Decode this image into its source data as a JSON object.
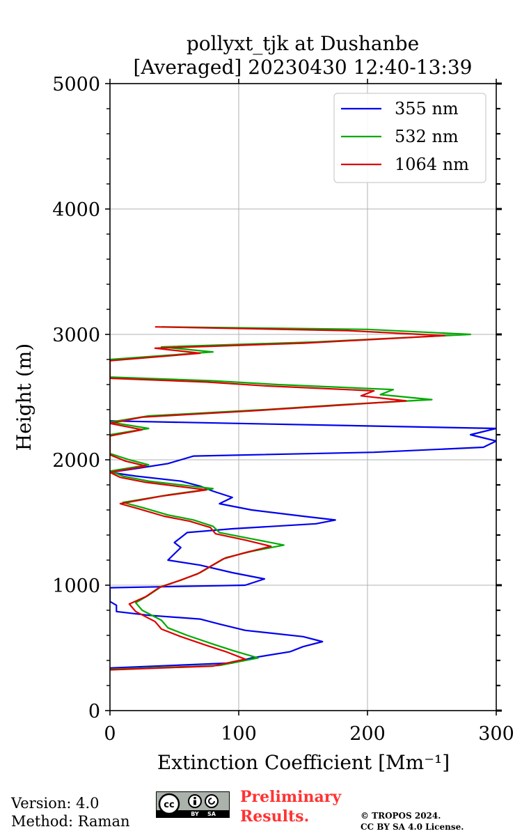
{
  "chart_data": {
    "type": "line",
    "orientation": "vertical-profile",
    "title": [
      "pollyxt_tjk at Dushanbe",
      "[Averaged] 20230430 12:40-13:39"
    ],
    "xlabel": "Extinction Coefficient [Mm⁻¹]",
    "ylabel": "Height (m)",
    "xlim": [
      0,
      300
    ],
    "ylim": [
      0,
      5000
    ],
    "xticks": [
      "0",
      "100",
      "200",
      "300"
    ],
    "yticks": [
      "0",
      "1000",
      "2000",
      "3000",
      "4000",
      "5000"
    ],
    "grid": true,
    "legend_position": "top-right",
    "series": [
      {
        "name": "355 nm",
        "color": "#0000ee",
        "points": [
          [
            0,
            340
          ],
          [
            95,
            380
          ],
          [
            110,
            420
          ],
          [
            140,
            470
          ],
          [
            150,
            510
          ],
          [
            165,
            550
          ],
          [
            150,
            590
          ],
          [
            105,
            640
          ],
          [
            85,
            690
          ],
          [
            70,
            730
          ],
          [
            30,
            760
          ],
          [
            5,
            790
          ],
          [
            5,
            840
          ],
          [
            0,
            870
          ],
          [
            0,
            980
          ],
          [
            105,
            1000
          ],
          [
            120,
            1050
          ],
          [
            95,
            1100
          ],
          [
            70,
            1160
          ],
          [
            45,
            1200
          ],
          [
            50,
            1250
          ],
          [
            55,
            1300
          ],
          [
            50,
            1340
          ],
          [
            55,
            1380
          ],
          [
            60,
            1420
          ],
          [
            95,
            1450
          ],
          [
            160,
            1490
          ],
          [
            175,
            1520
          ],
          [
            150,
            1550
          ],
          [
            110,
            1600
          ],
          [
            85,
            1650
          ],
          [
            95,
            1700
          ],
          [
            80,
            1750
          ],
          [
            70,
            1790
          ],
          [
            55,
            1830
          ],
          [
            20,
            1870
          ],
          [
            0,
            1900
          ],
          [
            20,
            1930
          ],
          [
            45,
            1970
          ],
          [
            55,
            2000
          ],
          [
            65,
            2030
          ],
          [
            205,
            2060
          ],
          [
            290,
            2100
          ],
          [
            300,
            2150
          ],
          [
            280,
            2200
          ],
          [
            300,
            2250
          ],
          [
            100,
            2290
          ],
          [
            0,
            2310
          ]
        ]
      },
      {
        "name": "532 nm",
        "color": "#00aa00",
        "points": [
          [
            0,
            330
          ],
          [
            85,
            360
          ],
          [
            115,
            420
          ],
          [
            95,
            480
          ],
          [
            80,
            530
          ],
          [
            60,
            600
          ],
          [
            45,
            660
          ],
          [
            40,
            720
          ],
          [
            25,
            800
          ],
          [
            20,
            860
          ],
          [
            30,
            920
          ],
          [
            40,
            990
          ],
          [
            55,
            1040
          ],
          [
            70,
            1100
          ],
          [
            80,
            1160
          ],
          [
            90,
            1220
          ],
          [
            110,
            1270
          ],
          [
            135,
            1320
          ],
          [
            110,
            1370
          ],
          [
            85,
            1420
          ],
          [
            80,
            1470
          ],
          [
            65,
            1520
          ],
          [
            45,
            1560
          ],
          [
            25,
            1620
          ],
          [
            10,
            1660
          ],
          [
            45,
            1720
          ],
          [
            80,
            1770
          ],
          [
            30,
            1830
          ],
          [
            10,
            1870
          ],
          [
            0,
            1910
          ],
          [
            30,
            1960
          ],
          [
            15,
            2000
          ],
          [
            0,
            2050
          ],
          [
            0,
            2200
          ],
          [
            30,
            2250
          ],
          [
            0,
            2300
          ],
          [
            30,
            2350
          ],
          [
            120,
            2400
          ],
          [
            180,
            2440
          ],
          [
            250,
            2480
          ],
          [
            210,
            2520
          ],
          [
            220,
            2560
          ],
          [
            130,
            2600
          ],
          [
            80,
            2630
          ],
          [
            0,
            2660
          ],
          [
            0,
            2700
          ],
          [
            0,
            2800
          ],
          [
            80,
            2860
          ],
          [
            40,
            2900
          ],
          [
            160,
            2940
          ],
          [
            280,
            3000
          ],
          [
            200,
            3040
          ],
          [
            40,
            3060
          ]
        ]
      },
      {
        "name": "1064 nm",
        "color": "#dd0000",
        "points": [
          [
            0,
            325
          ],
          [
            80,
            355
          ],
          [
            105,
            410
          ],
          [
            90,
            470
          ],
          [
            75,
            520
          ],
          [
            55,
            590
          ],
          [
            40,
            650
          ],
          [
            35,
            710
          ],
          [
            20,
            790
          ],
          [
            15,
            850
          ],
          [
            28,
            910
          ],
          [
            38,
            980
          ],
          [
            52,
            1030
          ],
          [
            68,
            1090
          ],
          [
            78,
            1150
          ],
          [
            88,
            1210
          ],
          [
            105,
            1260
          ],
          [
            125,
            1310
          ],
          [
            105,
            1360
          ],
          [
            82,
            1410
          ],
          [
            78,
            1460
          ],
          [
            62,
            1510
          ],
          [
            42,
            1550
          ],
          [
            22,
            1610
          ],
          [
            8,
            1650
          ],
          [
            40,
            1710
          ],
          [
            75,
            1760
          ],
          [
            28,
            1820
          ],
          [
            8,
            1860
          ],
          [
            0,
            1900
          ],
          [
            28,
            1950
          ],
          [
            12,
            1990
          ],
          [
            0,
            2040
          ],
          [
            0,
            2190
          ],
          [
            25,
            2240
          ],
          [
            0,
            2290
          ],
          [
            25,
            2340
          ],
          [
            110,
            2390
          ],
          [
            170,
            2430
          ],
          [
            230,
            2470
          ],
          [
            195,
            2510
          ],
          [
            205,
            2550
          ],
          [
            120,
            2590
          ],
          [
            75,
            2620
          ],
          [
            0,
            2650
          ],
          [
            0,
            2720
          ],
          [
            0,
            2790
          ],
          [
            70,
            2850
          ],
          [
            35,
            2890
          ],
          [
            150,
            2930
          ],
          [
            260,
            2990
          ],
          [
            185,
            3030
          ],
          [
            35,
            3060
          ]
        ]
      }
    ]
  },
  "footer": {
    "version": "Version: 4.0",
    "method": "Method: Raman",
    "preliminary_line1": "Preliminary",
    "preliminary_line2": "Results.",
    "copyright_line1": "© TROPOS 2024.",
    "copyright_line2": "CC BY SA 4.0 License.",
    "license_badge": {
      "cc": "cc",
      "by": "BY",
      "sa": "SA"
    }
  }
}
